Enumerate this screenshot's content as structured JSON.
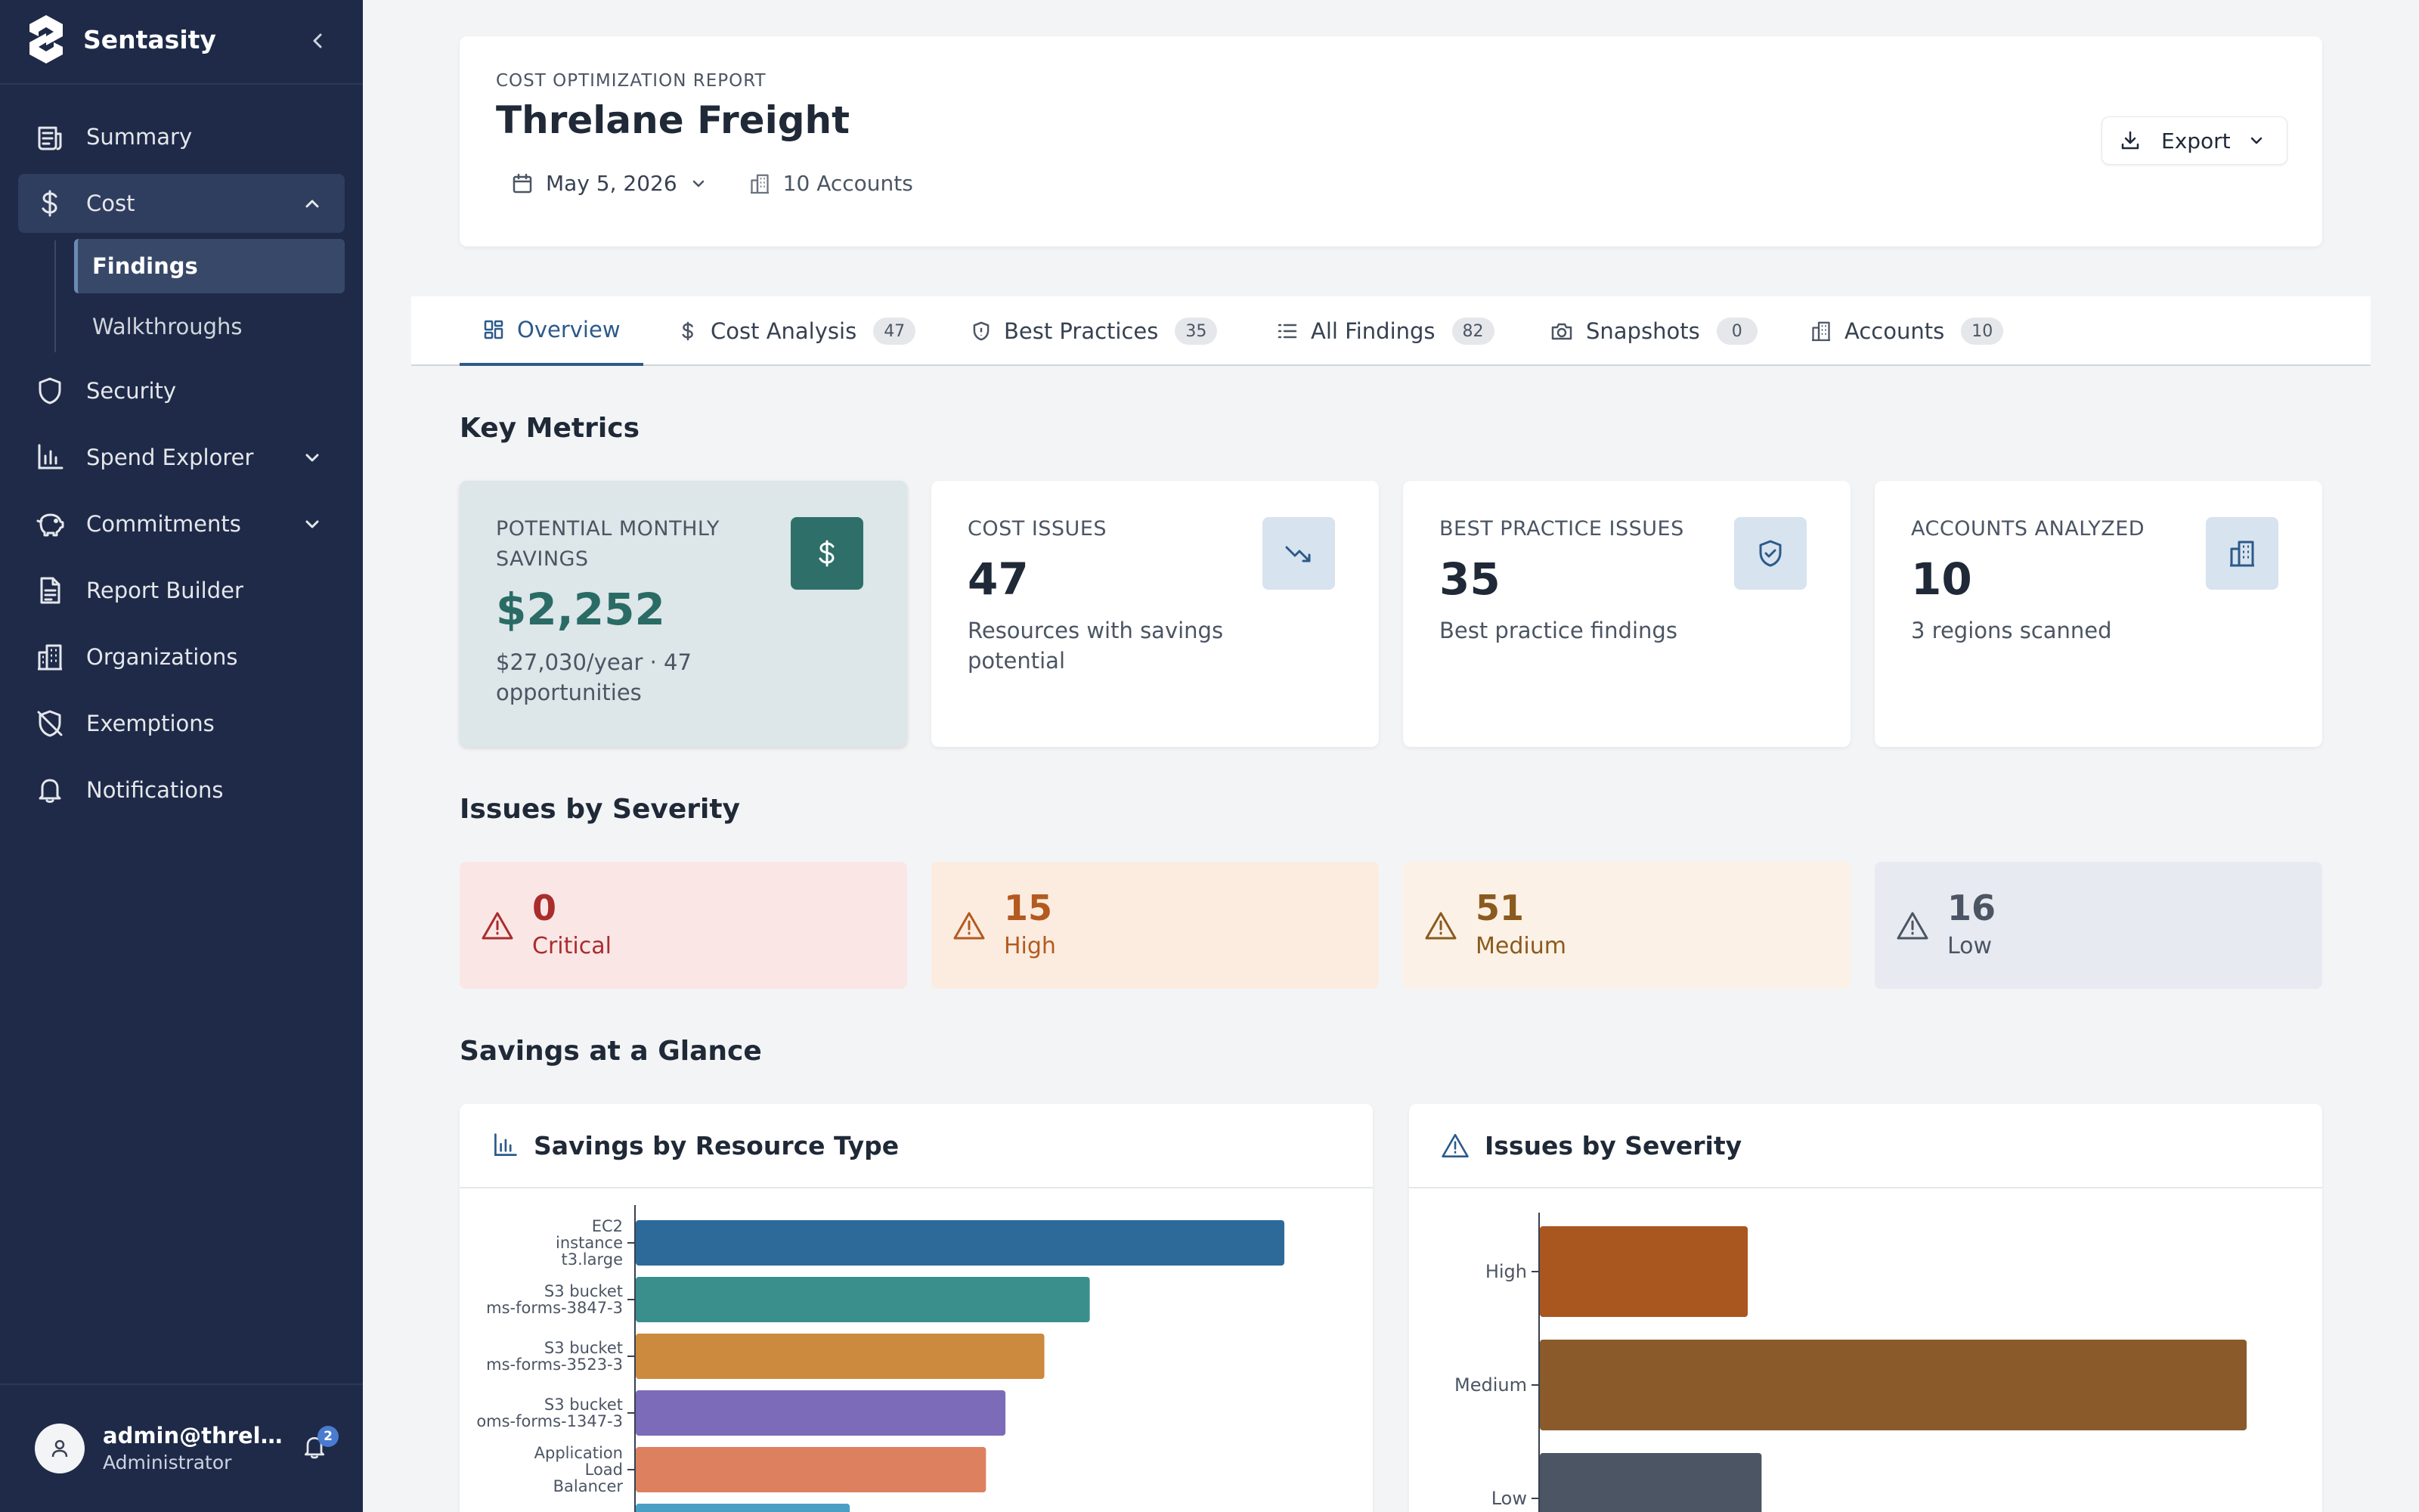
{
  "app": {
    "brand": "Sentasity"
  },
  "sidebar": {
    "items": [
      {
        "label": "Summary"
      },
      {
        "label": "Cost"
      },
      {
        "label": "Security"
      },
      {
        "label": "Spend Explorer"
      },
      {
        "label": "Commitments"
      },
      {
        "label": "Report Builder"
      },
      {
        "label": "Organizations"
      },
      {
        "label": "Exemptions"
      },
      {
        "label": "Notifications"
      }
    ],
    "cost_subitems": [
      {
        "label": "Findings"
      },
      {
        "label": "Walkthroughs"
      }
    ],
    "user": {
      "email": "admin@threla...",
      "role": "Administrator",
      "notification_count": "2"
    }
  },
  "header": {
    "kicker": "COST OPTIMIZATION REPORT",
    "title": "Threlane Freight",
    "date": "May 5, 2026",
    "accounts": "10 Accounts",
    "export_label": "Export"
  },
  "tabs": [
    {
      "label": "Overview",
      "count": ""
    },
    {
      "label": "Cost Analysis",
      "count": "47"
    },
    {
      "label": "Best Practices",
      "count": "35"
    },
    {
      "label": "All Findings",
      "count": "82"
    },
    {
      "label": "Snapshots",
      "count": "0"
    },
    {
      "label": "Accounts",
      "count": "10"
    }
  ],
  "sections": {
    "key_metrics": "Key Metrics",
    "issues_by_severity": "Issues by Severity",
    "savings_at_a_glance": "Savings at a Glance"
  },
  "metrics": [
    {
      "label": "POTENTIAL MONTHLY SAVINGS",
      "value": "$2,252",
      "sub": "$27,030/year · 47 opportunities",
      "icon": "dollar-icon"
    },
    {
      "label": "COST ISSUES",
      "value": "47",
      "sub": "Resources with savings potential",
      "icon": "trending-down-icon"
    },
    {
      "label": "BEST PRACTICE ISSUES",
      "value": "35",
      "sub": "Best practice findings",
      "icon": "shield-check-icon"
    },
    {
      "label": "ACCOUNTS ANALYZED",
      "value": "10",
      "sub": "3 regions scanned",
      "icon": "building-icon"
    }
  ],
  "severity": [
    {
      "count": "0",
      "label": "Critical",
      "bg": "#fbe6e6",
      "fg": "#a92d2d"
    },
    {
      "count": "15",
      "label": "High",
      "bg": "#fcece0",
      "fg": "#b35a1f"
    },
    {
      "count": "51",
      "label": "Medium",
      "bg": "#fbf1e6",
      "fg": "#8a5a1e"
    },
    {
      "count": "16",
      "label": "Low",
      "bg": "#e7eaf0",
      "fg": "#4b5563"
    }
  ],
  "chart_titles": {
    "resource": "Savings by Resource Type",
    "severity": "Issues by Severity"
  },
  "chart_data": [
    {
      "type": "bar",
      "orientation": "horizontal",
      "title": "Savings by Resource Type",
      "categories": [
        [
          "EC2",
          "instance",
          "t3.large"
        ],
        [
          "S3 bucket",
          "ms-forms-3847-3"
        ],
        [
          "S3 bucket",
          "ms-forms-3523-3"
        ],
        [
          "S3 bucket",
          "oms-forms-1347-3"
        ],
        [
          "Application",
          "Load",
          "Balancer"
        ],
        [
          ""
        ]
      ],
      "values": [
        100,
        70,
        63,
        57,
        54,
        33
      ],
      "colors": [
        "#2e6a99",
        "#3a8f8c",
        "#cc8a3e",
        "#7c6bb8",
        "#dd8060",
        "#4aa0c4"
      ],
      "xlim": [
        0,
        100
      ]
    },
    {
      "type": "bar",
      "orientation": "horizontal",
      "title": "Issues by Severity",
      "categories": [
        "High",
        "Medium",
        "Low"
      ],
      "values": [
        15,
        51,
        16
      ],
      "colors": [
        "#a9561f",
        "#8a5a2a",
        "#4b5563"
      ],
      "xlim": [
        0,
        60
      ]
    }
  ]
}
